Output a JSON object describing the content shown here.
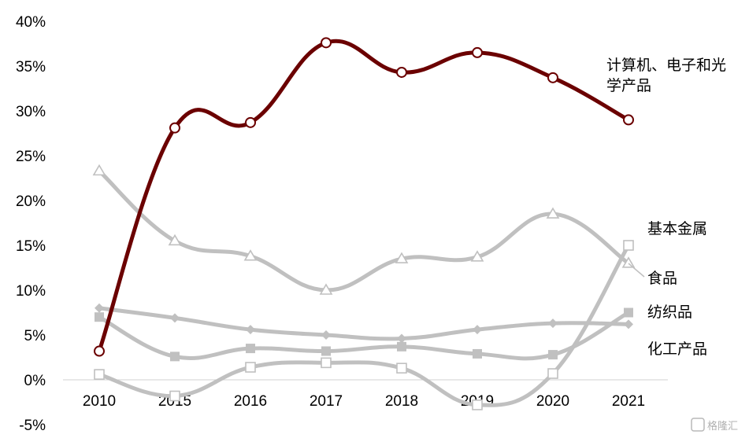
{
  "chart_data": {
    "type": "line",
    "title": "",
    "xlabel": "",
    "ylabel": "",
    "categories": [
      "2010",
      "2015",
      "2016",
      "2017",
      "2018",
      "2019",
      "2020",
      "2021"
    ],
    "ylim": [
      -5,
      40
    ],
    "yticks": [
      -5,
      0,
      5,
      10,
      15,
      20,
      25,
      30,
      35,
      40
    ],
    "ytick_labels": [
      "-5%",
      "0%",
      "5%",
      "10%",
      "15%",
      "20%",
      "25%",
      "30%",
      "35%",
      "40%"
    ],
    "grid": false,
    "legend": "direct-labels-right",
    "series": [
      {
        "name": "计算机、电子和光学产品",
        "label_lines": [
          "计算机、电子和光",
          "学产品"
        ],
        "color": "#6b0000",
        "marker": "circle-open",
        "values": [
          3.2,
          28.1,
          28.7,
          37.6,
          34.3,
          36.5,
          33.7,
          29.0
        ]
      },
      {
        "name": "基本金属",
        "color": "#c0c0c0",
        "marker": "square-open",
        "values": [
          0.6,
          -1.8,
          1.4,
          1.9,
          1.3,
          -2.8,
          0.7,
          15.0
        ]
      },
      {
        "name": "食品",
        "color": "#c0c0c0",
        "marker": "triangle-open",
        "values": [
          23.3,
          15.5,
          13.8,
          10.0,
          13.5,
          13.7,
          18.5,
          13.0
        ]
      },
      {
        "name": "纺织品",
        "color": "#c0c0c0",
        "marker": "diamond",
        "values": [
          8.0,
          6.9,
          5.6,
          5.0,
          4.6,
          5.6,
          6.3,
          6.2
        ]
      },
      {
        "name": "化工产品",
        "color": "#c0c0c0",
        "marker": "square",
        "values": [
          7.0,
          2.6,
          3.5,
          3.2,
          3.7,
          2.9,
          2.8,
          7.5
        ]
      }
    ]
  },
  "watermark": {
    "icon": "g-logo-icon",
    "text": "格隆汇"
  }
}
